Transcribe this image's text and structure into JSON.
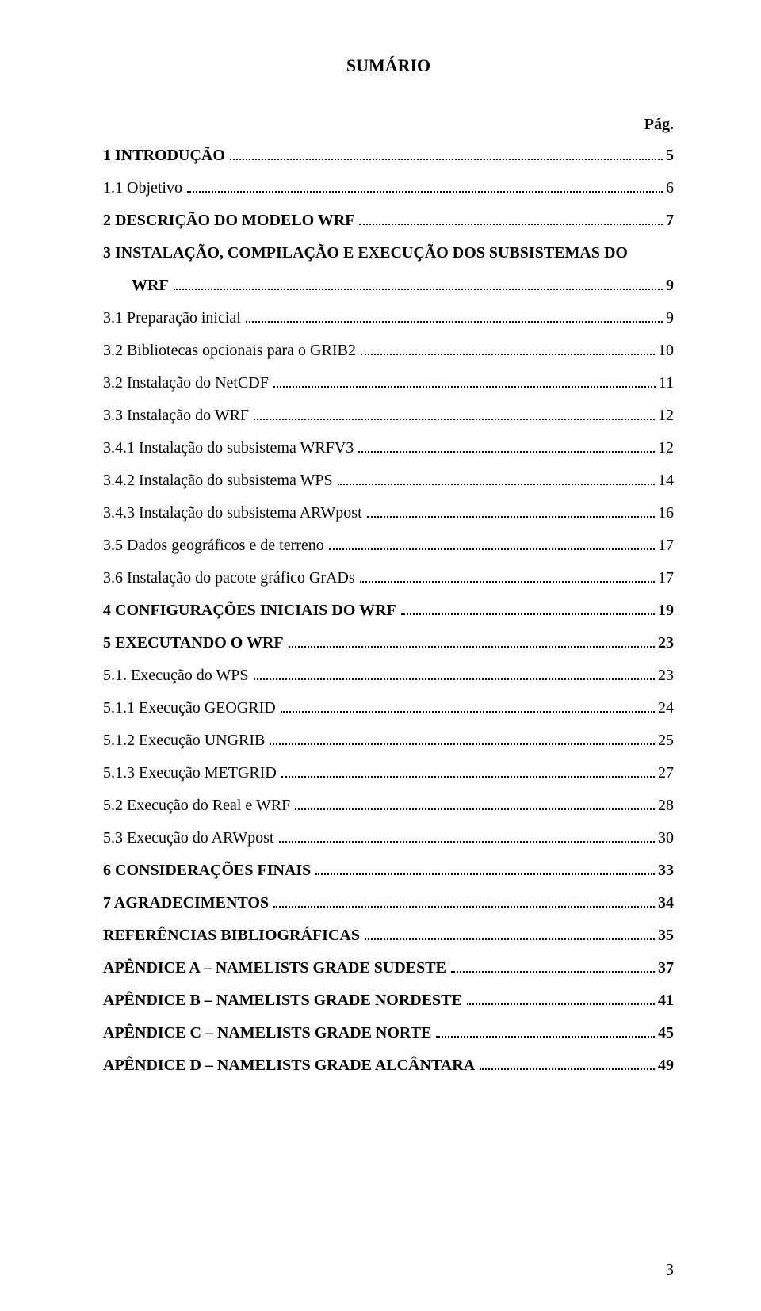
{
  "title": "SUMÁRIO",
  "page_label": "Pág.",
  "page_number": "3",
  "colors": {
    "text": "#000000",
    "background": "#ffffff"
  },
  "typography": {
    "font_family": "Times New Roman",
    "title_fontsize": 22,
    "body_fontsize": 20,
    "line_spacing": 14
  },
  "toc": [
    {
      "label": "1   INTRODUÇÃO",
      "page": "5",
      "bold": true
    },
    {
      "label": "1.1 Objetivo",
      "page": "6",
      "bold": false
    },
    {
      "label": "2   DESCRIÇÃO DO MODELO WRF",
      "page": "7",
      "bold": true
    },
    {
      "label_line1": "3   INSTALAÇÃO, COMPILAÇÃO E EXECUÇÃO DOS SUBSISTEMAS DO",
      "label_line2": "WRF",
      "page": "9",
      "bold": true,
      "multi": true
    },
    {
      "label": "3.1 Preparação inicial",
      "page": "9",
      "bold": false
    },
    {
      "label": "3.2 Bibliotecas opcionais para o GRIB2",
      "page": "10",
      "bold": false
    },
    {
      "label": "3.2 Instalação do NetCDF",
      "page": "11",
      "bold": false
    },
    {
      "label": "3.3 Instalação do WRF",
      "page": "12",
      "bold": false
    },
    {
      "label": "3.4.1 Instalação do subsistema WRFV3",
      "page": "12",
      "bold": false
    },
    {
      "label": "3.4.2 Instalação do subsistema WPS",
      "page": "14",
      "bold": false
    },
    {
      "label": "3.4.3 Instalação do subsistema ARWpost",
      "page": "16",
      "bold": false
    },
    {
      "label": "3.5 Dados geográficos e de terreno",
      "page": "17",
      "bold": false
    },
    {
      "label": "3.6 Instalação do pacote gráfico GrADs",
      "page": "17",
      "bold": false
    },
    {
      "label": "4   CONFIGURAÇÕES INICIAIS DO WRF",
      "page": "19",
      "bold": true
    },
    {
      "label": "5   EXECUTANDO O WRF",
      "page": "23",
      "bold": true
    },
    {
      "label": "5.1. Execução do WPS",
      "page": "23",
      "bold": false
    },
    {
      "label": "5.1.1 Execução GEOGRID",
      "page": "24",
      "bold": false
    },
    {
      "label": "5.1.2 Execução UNGRIB",
      "page": "25",
      "bold": false
    },
    {
      "label": "5.1.3 Execução METGRID",
      "page": "27",
      "bold": false
    },
    {
      "label": "5.2 Execução do Real e WRF",
      "page": "28",
      "bold": false
    },
    {
      "label": "5.3 Execução do ARWpost",
      "page": "30",
      "bold": false
    },
    {
      "label": "6   CONSIDERAÇÕES FINAIS",
      "page": "33",
      "bold": true
    },
    {
      "label": "7   AGRADECIMENTOS",
      "page": "34",
      "bold": true
    },
    {
      "label": "REFERÊNCIAS BIBLIOGRÁFICAS",
      "page": "35",
      "bold": true
    },
    {
      "label": "APÊNDICE A – NAMELISTS GRADE SUDESTE",
      "page": "37",
      "bold": true
    },
    {
      "label": "APÊNDICE B – NAMELISTS GRADE NORDESTE",
      "page": "41",
      "bold": true
    },
    {
      "label": "APÊNDICE C – NAMELISTS GRADE NORTE",
      "page": "45",
      "bold": true
    },
    {
      "label": "APÊNDICE D – NAMELISTS GRADE ALCÂNTARA",
      "page": "49",
      "bold": true
    }
  ]
}
